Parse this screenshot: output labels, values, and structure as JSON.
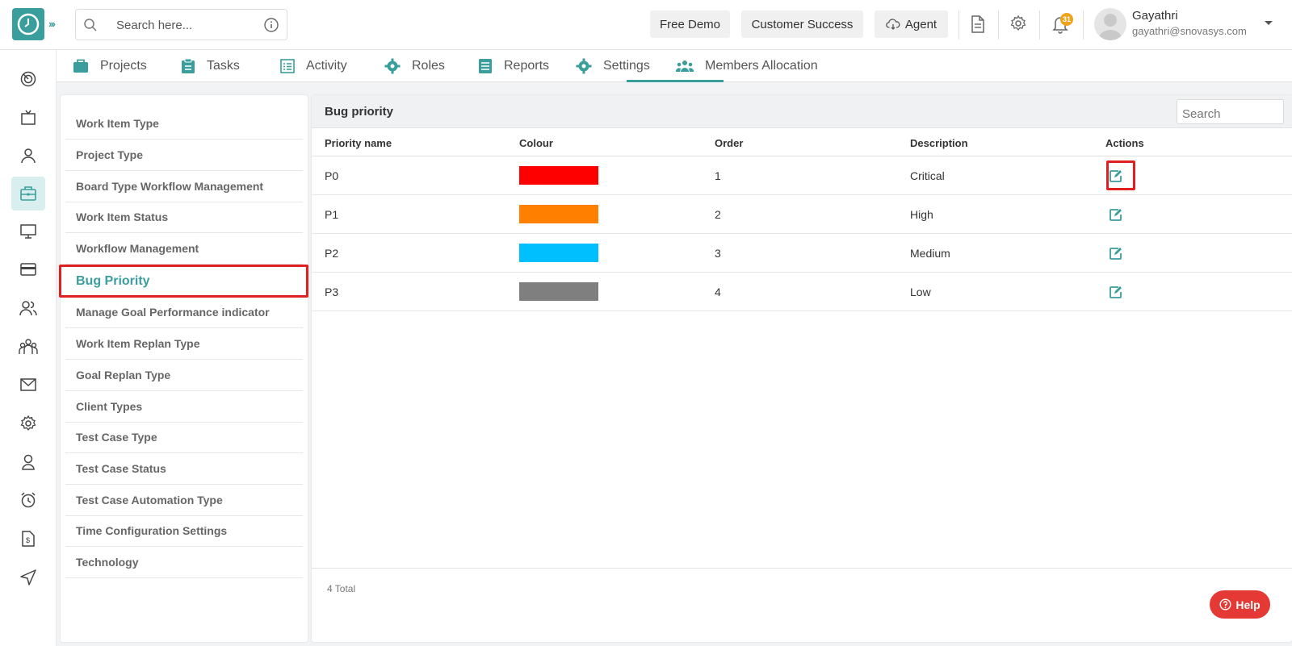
{
  "header": {
    "search_placeholder": "Search here...",
    "free_demo": "Free Demo",
    "customer_success": "Customer Success",
    "agent": "Agent",
    "notification_count": "31",
    "user_name": "Gayathri",
    "user_email": "gayathri@snovasys.com"
  },
  "sidebar": {
    "icons": [
      "dashboard-icon",
      "tv-icon",
      "user-icon",
      "briefcase-icon",
      "monitor-icon",
      "card-icon",
      "users-icon",
      "team-icon",
      "mail-icon",
      "settings-icon",
      "badge-icon",
      "alarm-icon",
      "invoice-icon",
      "send-icon"
    ],
    "active": "briefcase-icon"
  },
  "tabs": [
    {
      "label": "Projects",
      "icon": "briefcase-icon"
    },
    {
      "label": "Tasks",
      "icon": "clipboard-icon"
    },
    {
      "label": "Activity",
      "icon": "list-icon"
    },
    {
      "label": "Roles",
      "icon": "gear-icon"
    },
    {
      "label": "Reports",
      "icon": "report-icon"
    },
    {
      "label": "Settings",
      "icon": "gear-icon"
    },
    {
      "label": "Members Allocation",
      "icon": "members-icon"
    }
  ],
  "active_tab": "Settings",
  "settings_menu": [
    "Work Item Type",
    "Project Type",
    "Board Type Workflow Management",
    "Work Item Status",
    "Workflow Management",
    "Bug Priority",
    "Manage Goal Performance indicator",
    "Work Item Replan Type",
    "Goal Replan Type",
    "Client Types",
    "Test Case Type",
    "Test Case Status",
    "Test Case Automation Type",
    "Time Configuration Settings",
    "Technology"
  ],
  "active_setting": "Bug Priority",
  "panel": {
    "title": "Bug priority",
    "search_placeholder": "Search",
    "columns": [
      "Priority name",
      "Colour",
      "Order",
      "Description",
      "Actions"
    ],
    "rows": [
      {
        "name": "P0",
        "color": "#ff0000",
        "order": "1",
        "description": "Critical"
      },
      {
        "name": "P1",
        "color": "#ff7f00",
        "order": "2",
        "description": "High"
      },
      {
        "name": "P2",
        "color": "#00bfff",
        "order": "3",
        "description": "Medium"
      },
      {
        "name": "P3",
        "color": "#7f7f7f",
        "order": "4",
        "description": "Low"
      }
    ],
    "total": "4 Total"
  },
  "help_label": "Help",
  "colors": {
    "accent": "#3a9e9c",
    "highlight": "#e02020",
    "help": "#e53935"
  }
}
